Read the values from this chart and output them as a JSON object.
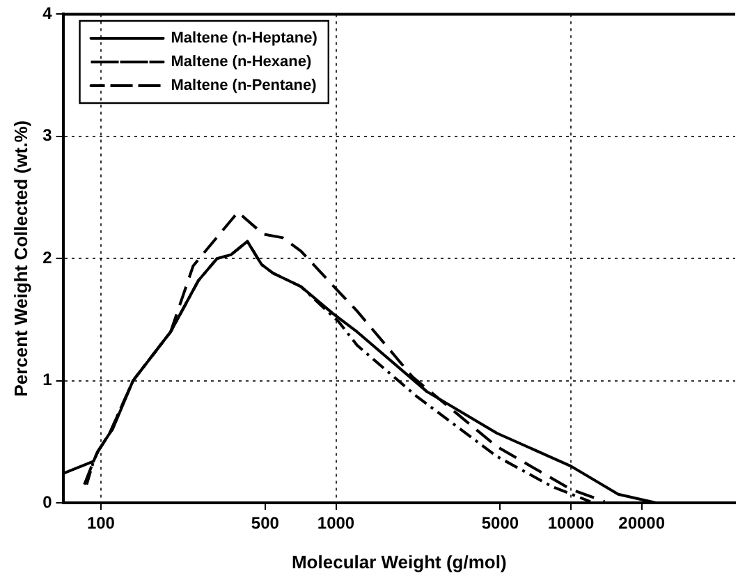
{
  "chart_data": {
    "type": "line",
    "xlabel": "Molecular Weight (g/mol)",
    "ylabel": "Percent Weight Collected (wt.%)",
    "log": "x",
    "xlim": [
      69,
      50000
    ],
    "xticks": [
      100,
      500,
      1000,
      5000,
      10000,
      20000
    ],
    "ylim": [
      0,
      4
    ],
    "yticks": [
      0,
      1,
      2,
      3,
      4
    ],
    "grid": true,
    "legend": "top left",
    "marker": "none",
    "series": [
      {
        "name": "Maltene (n-Heptane)",
        "color": "#000000",
        "line_style": "solid",
        "x": [
          69,
          93,
          97,
          109,
          112,
          137,
          198,
          260,
          312,
          357,
          420,
          483,
          540,
          710,
          970,
          1230,
          2440,
          4840,
          10000,
          15900,
          23000
        ],
        "values": [
          0.24,
          0.34,
          0.42,
          0.57,
          0.6,
          1.0,
          1.4,
          1.82,
          2.0,
          2.03,
          2.14,
          1.95,
          1.88,
          1.77,
          1.55,
          1.4,
          0.91,
          0.57,
          0.3,
          0.07,
          0
        ]
      },
      {
        "name": "Maltene (n-Hexane)",
        "color": "#000000",
        "line_style": "dashed",
        "x": [
          85,
          93,
          97,
          109,
          137,
          198,
          247,
          383,
          490,
          594,
          710,
          970,
          1230,
          2120,
          4840,
          10000,
          13900
        ],
        "values": [
          0.15,
          0.34,
          0.42,
          0.57,
          1.0,
          1.4,
          1.94,
          2.38,
          2.2,
          2.17,
          2.06,
          1.78,
          1.57,
          1.03,
          0.46,
          0.11,
          0.01
        ]
      },
      {
        "name": "Maltene (n-Pentane)",
        "color": "#000000",
        "line_style": "dash-dot",
        "x": [
          87,
          93,
          97,
          109,
          137,
          198,
          260,
          312,
          357,
          420,
          483,
          540,
          710,
          1030,
          1230,
          2210,
          4840,
          8370,
          12100
        ],
        "values": [
          0.15,
          0.34,
          0.42,
          0.57,
          1.0,
          1.4,
          1.82,
          2.0,
          2.03,
          2.14,
          1.95,
          1.88,
          1.77,
          1.48,
          1.29,
          0.87,
          0.38,
          0.13,
          0.01
        ]
      }
    ]
  }
}
